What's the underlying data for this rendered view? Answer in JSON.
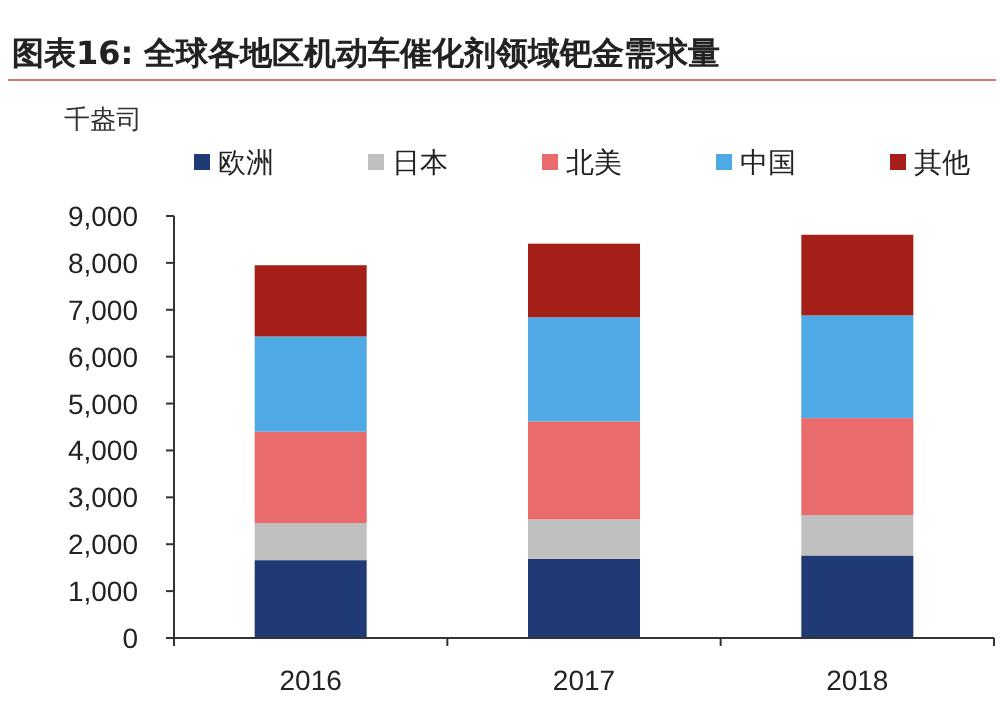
{
  "chart_data": {
    "type": "bar",
    "stacked": true,
    "title": "图表16:  全球各地区机动车催化剂领域钯金需求量",
    "ylabel": "千盎司",
    "categories": [
      "2016",
      "2017",
      "2018"
    ],
    "series": [
      {
        "name": "欧洲",
        "color": "#1f3a75",
        "values": [
          1660,
          1690,
          1760
        ]
      },
      {
        "name": "日本",
        "color": "#bfbfbf",
        "values": [
          790,
          840,
          860
        ]
      },
      {
        "name": "北美",
        "color": "#e96b6b",
        "values": [
          1950,
          2090,
          2070
        ]
      },
      {
        "name": "中国",
        "color": "#4ea9e4",
        "values": [
          2030,
          2220,
          2190
        ]
      },
      {
        "name": "其他",
        "color": "#a52018",
        "values": [
          1520,
          1570,
          1720
        ]
      }
    ],
    "ylim": [
      0,
      9000
    ],
    "yticks": [
      {
        "value": 0,
        "label": "0"
      },
      {
        "value": 1000,
        "label": "1,000"
      },
      {
        "value": 2000,
        "label": "2,000"
      },
      {
        "value": 3000,
        "label": "3,000"
      },
      {
        "value": 4000,
        "label": "4,000"
      },
      {
        "value": 5000,
        "label": "5,000"
      },
      {
        "value": 6000,
        "label": "6,000"
      },
      {
        "value": 7000,
        "label": "7,000"
      },
      {
        "value": 8000,
        "label": "8,000"
      },
      {
        "value": 9000,
        "label": "9,000"
      }
    ],
    "legend": "top",
    "grid": false
  }
}
